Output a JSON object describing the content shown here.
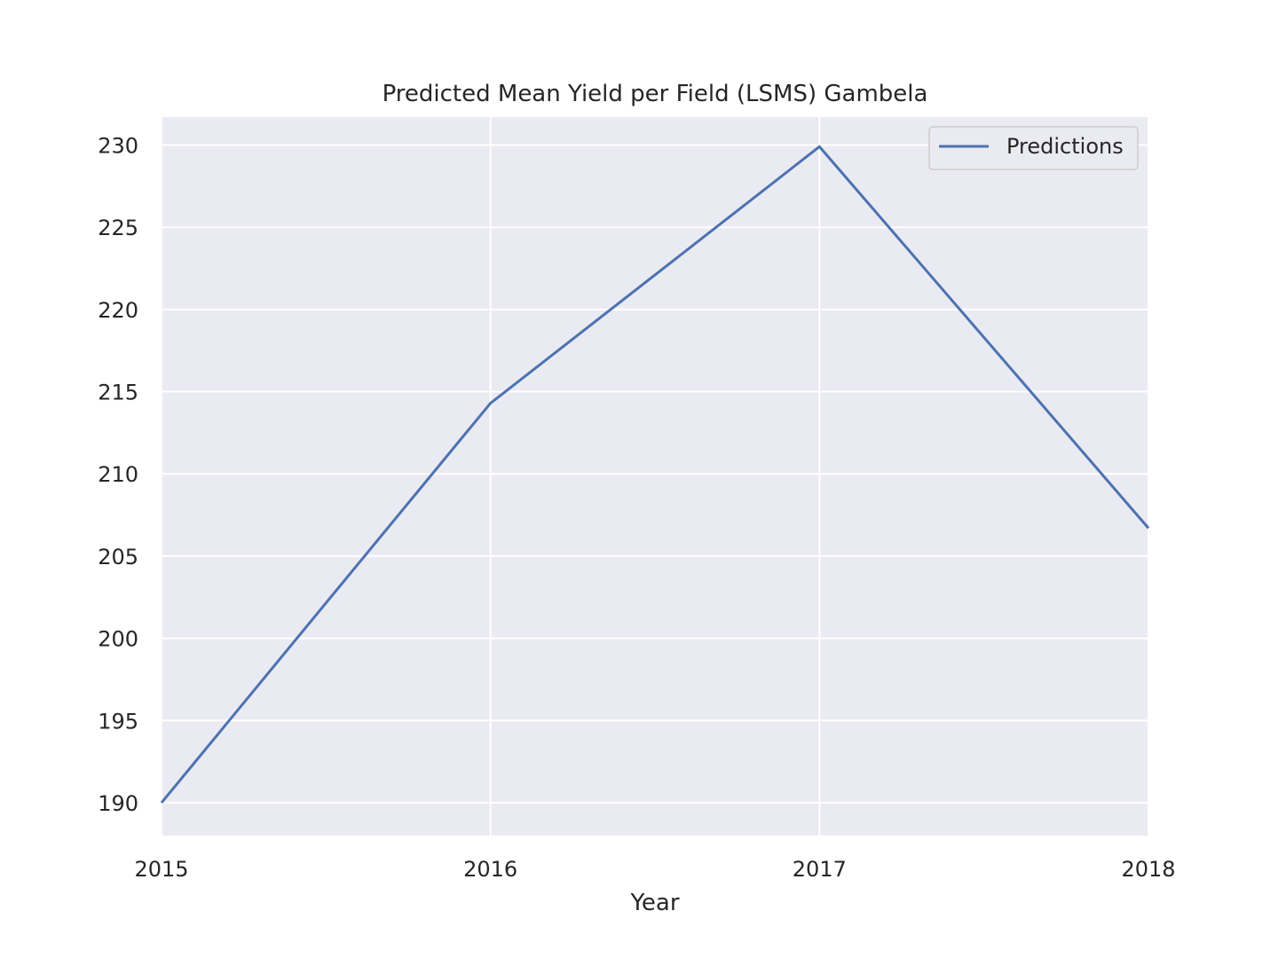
{
  "chart_data": {
    "type": "line",
    "title": "Predicted Mean Yield per Field (LSMS) Gambela",
    "xlabel": "Year",
    "ylabel": "",
    "x": [
      2015,
      2016,
      2017,
      2018
    ],
    "x_tick_labels": [
      "2015",
      "2016",
      "2017",
      "2018"
    ],
    "y_ticks": [
      190,
      195,
      200,
      205,
      210,
      215,
      220,
      225,
      230
    ],
    "y_tick_labels": [
      "190",
      "195",
      "200",
      "205",
      "210",
      "215",
      "220",
      "225",
      "230"
    ],
    "xlim": [
      2015,
      2018
    ],
    "ylim": [
      188,
      231.7
    ],
    "grid": true,
    "legend_position": "upper-right",
    "series": [
      {
        "name": "Predictions",
        "values": [
          190.0,
          214.3,
          229.9,
          206.7
        ],
        "color": "#4c72b0"
      }
    ],
    "colors": {
      "plot_background": "#eaeaf2",
      "grid": "#ffffff",
      "text": "#262626",
      "legend_border": "#cccccc"
    }
  }
}
